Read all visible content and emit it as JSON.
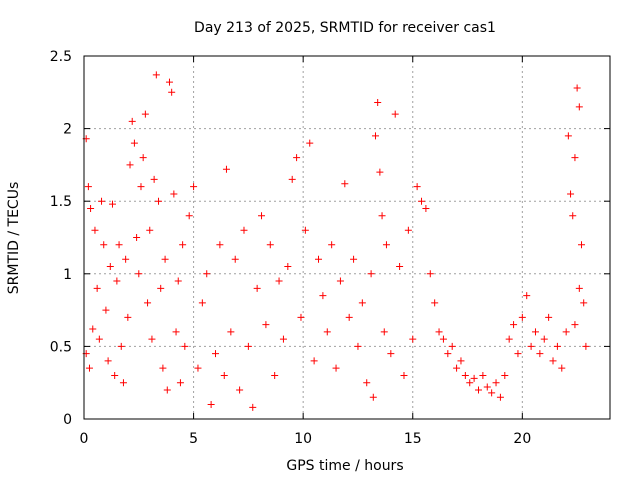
{
  "chart_data": {
    "type": "scatter",
    "title": "Day 213 of 2025, SRMTID for receiver cas1",
    "xlabel": "GPS time / hours",
    "ylabel": "SRMTID / TECUs",
    "xlim": [
      0,
      24
    ],
    "ylim": [
      0,
      2.5
    ],
    "xticks": [
      0,
      5,
      10,
      15,
      20
    ],
    "xtick_labels": [
      "0",
      "5",
      "10",
      "15",
      "20"
    ],
    "yticks": [
      0,
      0.5,
      1,
      1.5,
      2,
      2.5
    ],
    "ytick_labels": [
      "0",
      "0.5",
      "1",
      "1.5",
      "2",
      "2.5"
    ],
    "grid": true,
    "marker": "+",
    "series_color": "#ff0000",
    "series": [
      {
        "name": "SRMTID",
        "points": [
          [
            0.1,
            1.93
          ],
          [
            0.2,
            1.6
          ],
          [
            0.3,
            1.45
          ],
          [
            0.1,
            0.45
          ],
          [
            0.25,
            0.35
          ],
          [
            0.4,
            0.62
          ],
          [
            0.5,
            1.3
          ],
          [
            0.6,
            0.9
          ],
          [
            0.7,
            0.55
          ],
          [
            0.8,
            1.5
          ],
          [
            0.9,
            1.2
          ],
          [
            1.0,
            0.75
          ],
          [
            1.1,
            0.4
          ],
          [
            1.2,
            1.05
          ],
          [
            1.3,
            1.48
          ],
          [
            1.4,
            0.3
          ],
          [
            1.5,
            0.95
          ],
          [
            1.6,
            1.2
          ],
          [
            1.7,
            0.5
          ],
          [
            1.8,
            0.25
          ],
          [
            1.9,
            1.1
          ],
          [
            2.0,
            0.7
          ],
          [
            2.1,
            1.75
          ],
          [
            2.2,
            2.05
          ],
          [
            2.3,
            1.9
          ],
          [
            2.4,
            1.25
          ],
          [
            2.5,
            1.0
          ],
          [
            2.6,
            1.6
          ],
          [
            2.7,
            1.8
          ],
          [
            2.8,
            2.1
          ],
          [
            2.9,
            0.8
          ],
          [
            3.0,
            1.3
          ],
          [
            3.1,
            0.55
          ],
          [
            3.2,
            1.65
          ],
          [
            3.3,
            2.37
          ],
          [
            3.4,
            1.5
          ],
          [
            3.5,
            0.9
          ],
          [
            3.6,
            0.35
          ],
          [
            3.7,
            1.1
          ],
          [
            3.8,
            0.2
          ],
          [
            3.9,
            2.32
          ],
          [
            4.0,
            2.25
          ],
          [
            4.1,
            1.55
          ],
          [
            4.2,
            0.6
          ],
          [
            4.3,
            0.95
          ],
          [
            4.4,
            0.25
          ],
          [
            4.5,
            1.2
          ],
          [
            4.6,
            0.5
          ],
          [
            4.8,
            1.4
          ],
          [
            5.0,
            1.6
          ],
          [
            5.2,
            0.35
          ],
          [
            5.4,
            0.8
          ],
          [
            5.6,
            1.0
          ],
          [
            5.8,
            0.1
          ],
          [
            6.0,
            0.45
          ],
          [
            6.2,
            1.2
          ],
          [
            6.4,
            0.3
          ],
          [
            6.5,
            1.72
          ],
          [
            6.7,
            0.6
          ],
          [
            6.9,
            1.1
          ],
          [
            7.1,
            0.2
          ],
          [
            7.3,
            1.3
          ],
          [
            7.5,
            0.5
          ],
          [
            7.7,
            0.08
          ],
          [
            7.9,
            0.9
          ],
          [
            8.1,
            1.4
          ],
          [
            8.3,
            0.65
          ],
          [
            8.5,
            1.2
          ],
          [
            8.7,
            0.3
          ],
          [
            8.9,
            0.95
          ],
          [
            9.1,
            0.55
          ],
          [
            9.3,
            1.05
          ],
          [
            9.5,
            1.65
          ],
          [
            9.7,
            1.8
          ],
          [
            9.9,
            0.7
          ],
          [
            10.1,
            1.3
          ],
          [
            10.3,
            1.9
          ],
          [
            10.5,
            0.4
          ],
          [
            10.7,
            1.1
          ],
          [
            10.9,
            0.85
          ],
          [
            11.1,
            0.6
          ],
          [
            11.3,
            1.2
          ],
          [
            11.5,
            0.35
          ],
          [
            11.7,
            0.95
          ],
          [
            11.9,
            1.62
          ],
          [
            12.1,
            0.7
          ],
          [
            12.3,
            1.1
          ],
          [
            12.5,
            0.5
          ],
          [
            12.7,
            0.8
          ],
          [
            12.9,
            0.25
          ],
          [
            13.1,
            1.0
          ],
          [
            13.2,
            0.15
          ],
          [
            13.3,
            1.95
          ],
          [
            13.4,
            2.18
          ],
          [
            13.5,
            1.7
          ],
          [
            13.6,
            1.4
          ],
          [
            13.7,
            0.6
          ],
          [
            13.8,
            1.2
          ],
          [
            14.0,
            0.45
          ],
          [
            14.2,
            2.1
          ],
          [
            14.4,
            1.05
          ],
          [
            14.6,
            0.3
          ],
          [
            14.8,
            1.3
          ],
          [
            15.0,
            0.55
          ],
          [
            15.2,
            1.6
          ],
          [
            15.4,
            1.5
          ],
          [
            15.6,
            1.45
          ],
          [
            15.8,
            1.0
          ],
          [
            16.0,
            0.8
          ],
          [
            16.2,
            0.6
          ],
          [
            16.4,
            0.55
          ],
          [
            16.6,
            0.45
          ],
          [
            16.8,
            0.5
          ],
          [
            17.0,
            0.35
          ],
          [
            17.2,
            0.4
          ],
          [
            17.4,
            0.3
          ],
          [
            17.6,
            0.25
          ],
          [
            17.8,
            0.28
          ],
          [
            18.0,
            0.2
          ],
          [
            18.2,
            0.3
          ],
          [
            18.4,
            0.22
          ],
          [
            18.6,
            0.18
          ],
          [
            18.8,
            0.25
          ],
          [
            19.0,
            0.15
          ],
          [
            19.2,
            0.3
          ],
          [
            19.4,
            0.55
          ],
          [
            19.6,
            0.65
          ],
          [
            19.8,
            0.45
          ],
          [
            20.0,
            0.7
          ],
          [
            20.2,
            0.85
          ],
          [
            20.4,
            0.5
          ],
          [
            20.6,
            0.6
          ],
          [
            20.8,
            0.45
          ],
          [
            21.0,
            0.55
          ],
          [
            21.2,
            0.7
          ],
          [
            21.4,
            0.4
          ],
          [
            21.6,
            0.5
          ],
          [
            21.8,
            0.35
          ],
          [
            22.0,
            0.6
          ],
          [
            22.1,
            1.95
          ],
          [
            22.2,
            1.55
          ],
          [
            22.3,
            1.4
          ],
          [
            22.4,
            1.8
          ],
          [
            22.5,
            2.28
          ],
          [
            22.6,
            2.15
          ],
          [
            22.7,
            1.2
          ],
          [
            22.8,
            0.8
          ],
          [
            22.9,
            0.5
          ],
          [
            22.4,
            0.65
          ],
          [
            22.6,
            0.9
          ]
        ]
      }
    ]
  }
}
